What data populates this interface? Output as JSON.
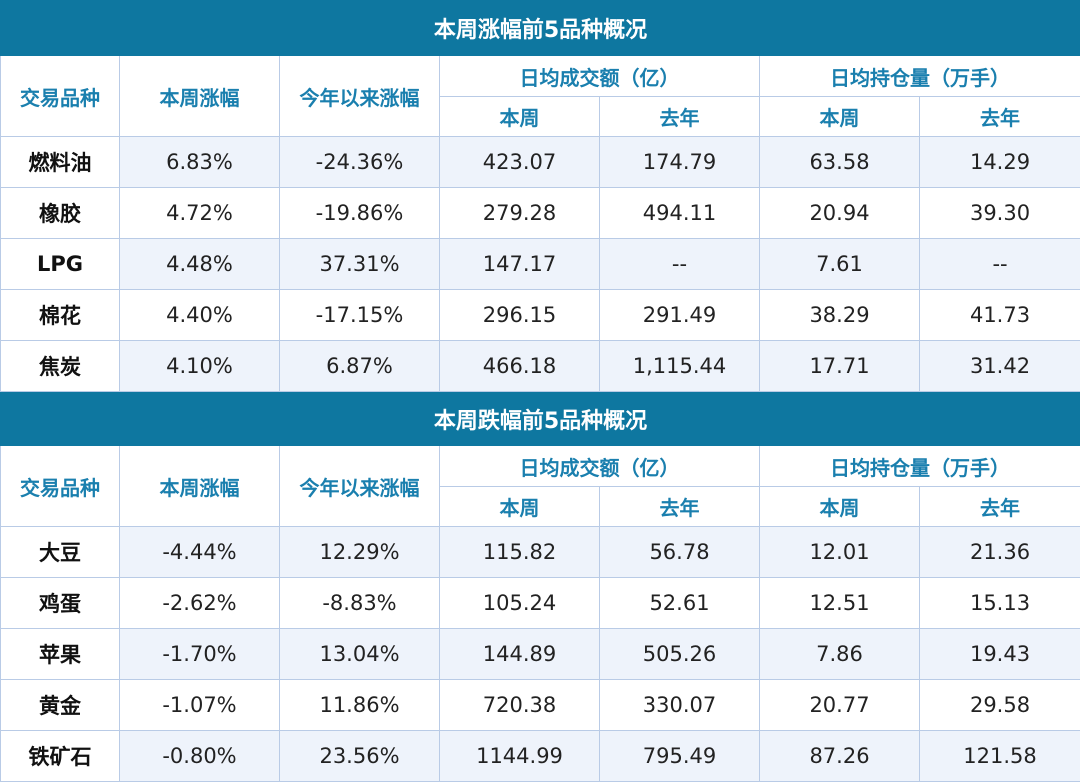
{
  "headers": {
    "variety": "交易品种",
    "week_change": "本周涨幅",
    "ytd_change": "今年以来涨幅",
    "avg_turnover": "日均成交额（亿）",
    "avg_open_interest": "日均持仓量（万手）",
    "this_week": "本周",
    "last_year": "去年"
  },
  "colors": {
    "title_bar": "#0e77a0",
    "header_text": "#1a7fae",
    "stripe": "#eef3fb",
    "border": "#b9cbe6"
  },
  "sections": [
    {
      "title": "本周涨幅前5品种概况",
      "rows": [
        [
          "燃料油",
          "6.83%",
          "-24.36%",
          "423.07",
          "174.79",
          "63.58",
          "14.29"
        ],
        [
          "橡胶",
          "4.72%",
          "-19.86%",
          "279.28",
          "494.11",
          "20.94",
          "39.30"
        ],
        [
          "LPG",
          "4.48%",
          "37.31%",
          "147.17",
          "--",
          "7.61",
          "--"
        ],
        [
          "棉花",
          "4.40%",
          "-17.15%",
          "296.15",
          "291.49",
          "38.29",
          "41.73"
        ],
        [
          "焦炭",
          "4.10%",
          "6.87%",
          "466.18",
          "1,115.44",
          "17.71",
          "31.42"
        ]
      ]
    },
    {
      "title": "本周跌幅前5品种概况",
      "rows": [
        [
          "大豆",
          "-4.44%",
          "12.29%",
          "115.82",
          "56.78",
          "12.01",
          "21.36"
        ],
        [
          "鸡蛋",
          "-2.62%",
          "-8.83%",
          "105.24",
          "52.61",
          "12.51",
          "15.13"
        ],
        [
          "苹果",
          "-1.70%",
          "13.04%",
          "144.89",
          "505.26",
          "7.86",
          "19.43"
        ],
        [
          "黄金",
          "-1.07%",
          "11.86%",
          "720.38",
          "330.07",
          "20.77",
          "29.58"
        ],
        [
          "铁矿石",
          "-0.80%",
          "23.56%",
          "1144.99",
          "795.49",
          "87.26",
          "121.58"
        ]
      ]
    }
  ]
}
